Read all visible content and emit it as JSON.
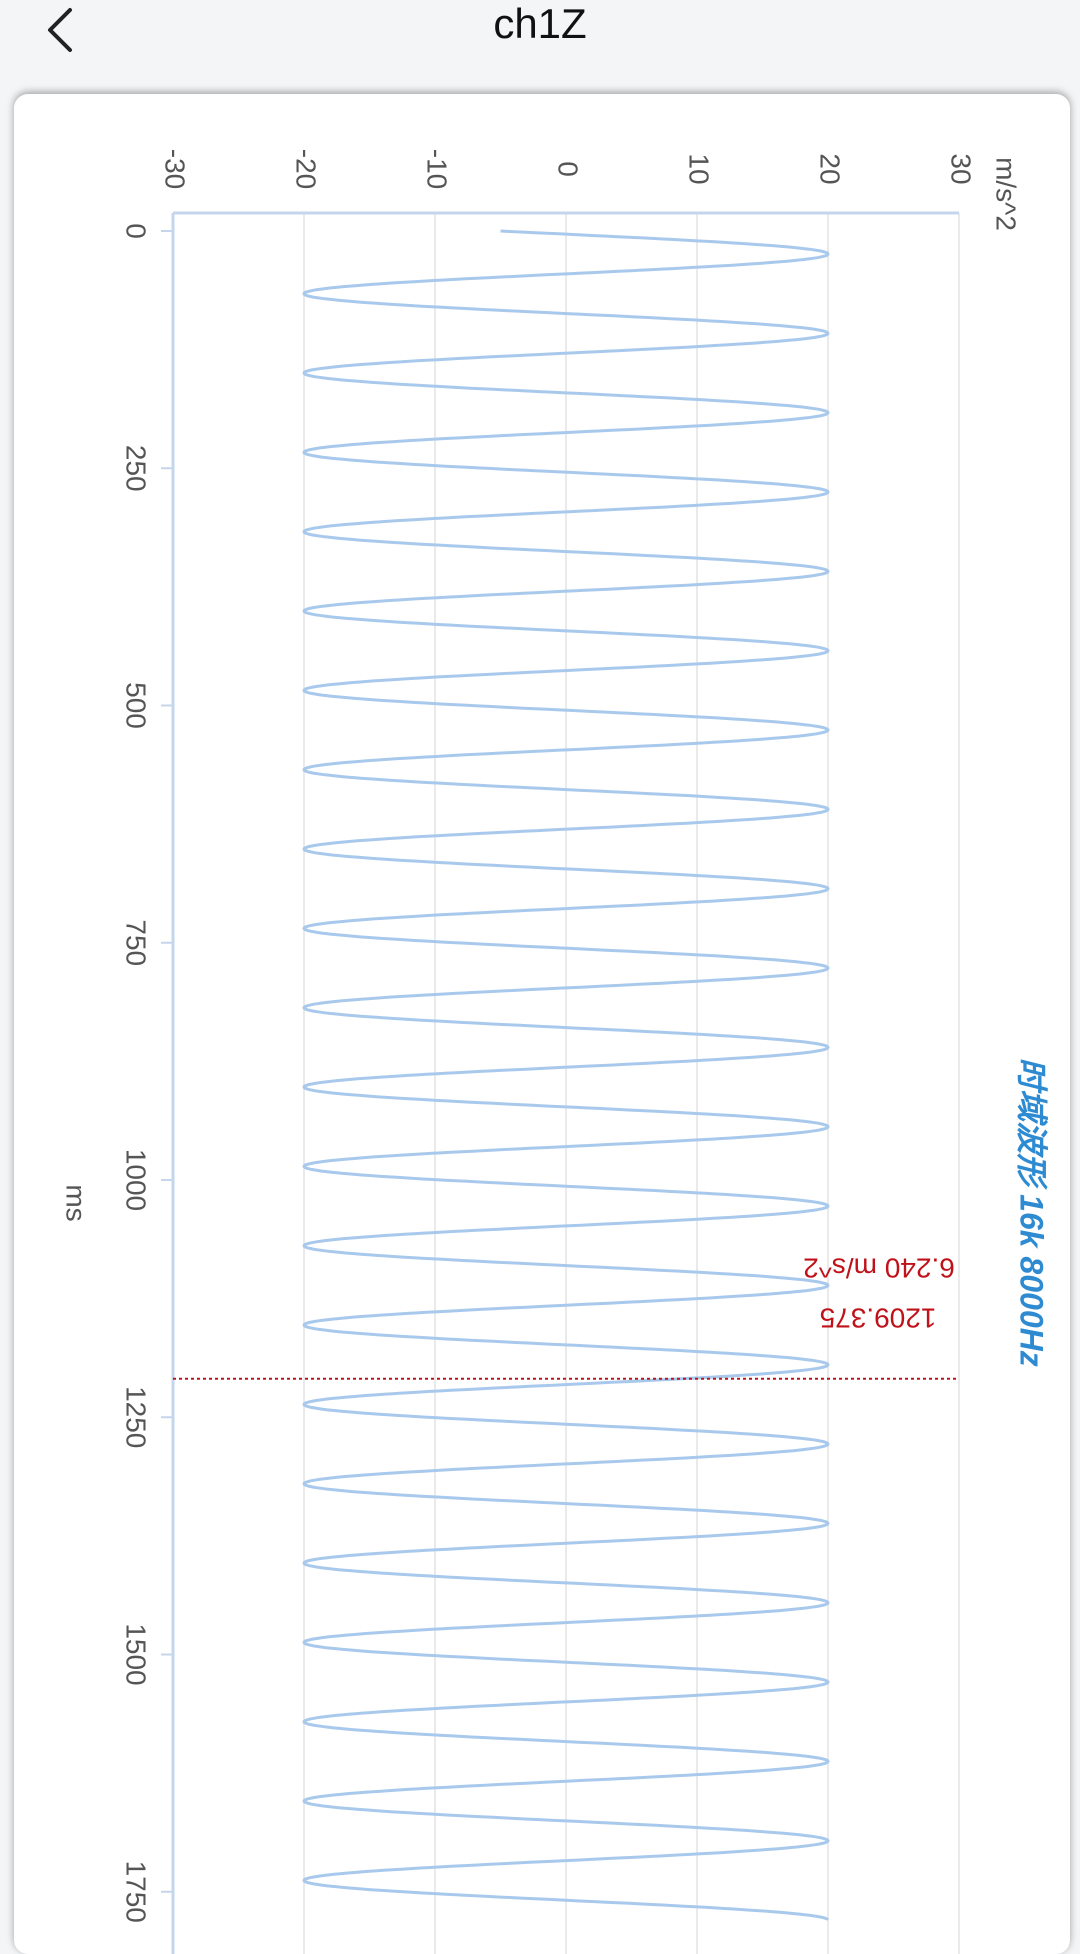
{
  "header": {
    "title": "ch1Z"
  },
  "icons": {
    "back": "chevron-left-icon"
  },
  "colors": {
    "line": "#a9c9ec",
    "grid": "#e4e4e4",
    "axis": "#c5d6ec",
    "title": "#2e8bd1",
    "cursor": "#c0121a",
    "text": "#555555"
  },
  "chart_data": {
    "type": "line",
    "orientation": "rotated-90",
    "title": "时域波形 16k 8000Hz",
    "xlabel": "ms",
    "ylabel": "m/s^2",
    "xlim": [
      0,
      1780
    ],
    "ylim": [
      -30,
      30
    ],
    "x_ticks": [
      0,
      250,
      500,
      750,
      1000,
      1250,
      1500,
      1750
    ],
    "y_ticks": [
      -30,
      -20,
      -10,
      0,
      10,
      20,
      30
    ],
    "grid": true,
    "series": [
      {
        "amplitude": 20,
        "period_ms": 83.6,
        "start_value": -5,
        "start_ms": 0
      }
    ],
    "cursor": {
      "x": 1209.375,
      "y": 6.24,
      "x_label": "1209.375",
      "y_label": "6.240 m/s^2"
    }
  }
}
